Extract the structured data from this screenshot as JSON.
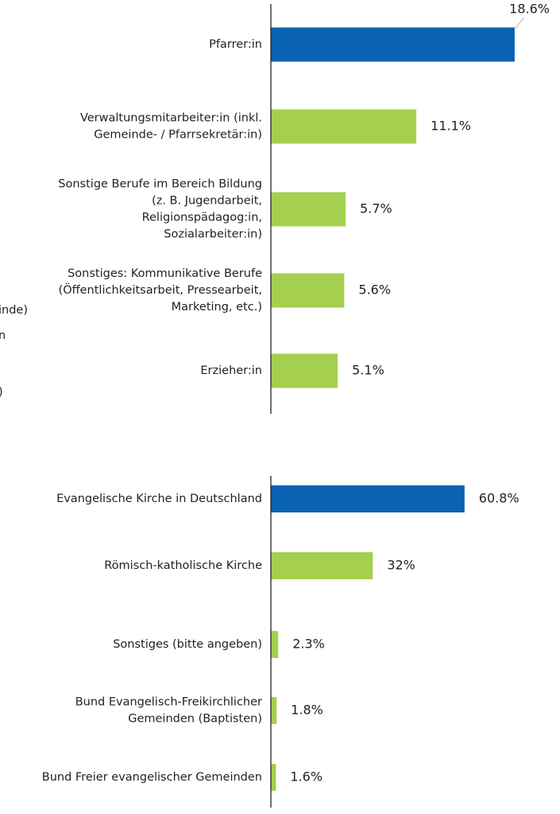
{
  "chart_data": [
    {
      "type": "bar",
      "orientation": "horizontal",
      "categories": [
        [
          "Pfarrer:in"
        ],
        [
          "Verwaltungsmitarbeiter:in (inkl.",
          "Gemeinde- / Pfarrsekretär:in)"
        ],
        [
          "Sonstige Berufe im Bereich Bildung",
          "(z. B. Jugendarbeit,",
          "Religionspädagog:in,",
          "Sozialarbeiter:in)"
        ],
        [
          "Sonstiges: Kommunikative Berufe",
          "(Öffentlichkeitsarbeit, Pressearbeit,",
          "Marketing, etc.)"
        ],
        [
          "Erzieher:in"
        ]
      ],
      "values": [
        18.6,
        11.1,
        5.7,
        5.6,
        5.1
      ],
      "value_labels": [
        "18.6%",
        "11.1%",
        "5.7%",
        "5.6%",
        "5.1%"
      ],
      "colors": [
        "#0a62b4",
        "#a5cf4e",
        "#a5cf4e",
        "#a5cf4e",
        "#a5cf4e"
      ]
    },
    {
      "type": "bar",
      "orientation": "horizontal",
      "categories": [
        [
          "Evangelische Kirche in Deutschland"
        ],
        [
          "Römisch-katholische Kirche"
        ],
        [
          "Sonstiges (bitte angeben)"
        ],
        [
          "Bund Evangelisch-Freikirchlicher",
          "Gemeinden (Baptisten)"
        ],
        [
          "Bund Freier evangelischer Gemeinden"
        ]
      ],
      "values": [
        60.8,
        32,
        2.3,
        1.8,
        1.6
      ],
      "value_labels": [
        "60.8%",
        "32%",
        "2.3%",
        "1.8%",
        "1.6%"
      ],
      "colors": [
        "#0a62b4",
        "#a5cf4e",
        "#a5cf4e",
        "#a5cf4e",
        "#a5cf4e"
      ]
    }
  ],
  "clipped_texts": [
    "inde)",
    "n",
    ")"
  ]
}
